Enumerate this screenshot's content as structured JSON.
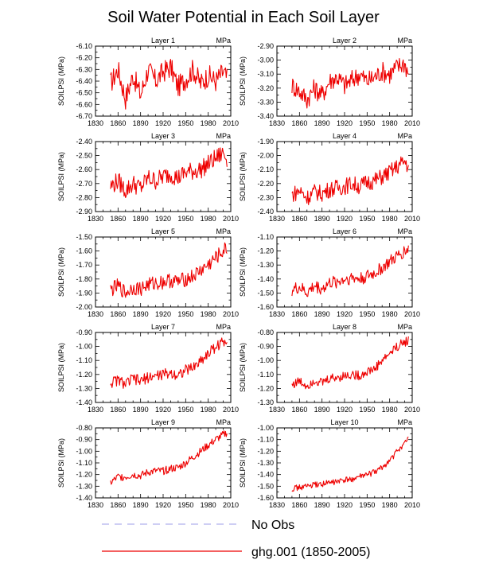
{
  "title": "Soil Water Potential in Each Soil Layer",
  "colors": {
    "model": "#ee0000",
    "obs": "#b0b0ee"
  },
  "legend": {
    "items": [
      {
        "label": "No Obs",
        "style": "dashed",
        "color": "#b0b0ee"
      },
      {
        "label": "ghg.001 (1850-2005)",
        "style": "solid",
        "color": "#ee0000"
      }
    ]
  },
  "chart_data": [
    {
      "type": "line",
      "title": "Layer 1",
      "units": "MPa",
      "ylabel": "SOILPSI  (MPa)",
      "xlabel": "",
      "xlim": [
        1830,
        2010
      ],
      "xticks": [
        1830,
        1860,
        1890,
        1920,
        1950,
        1980,
        2010
      ],
      "ylim": [
        -6.7,
        -6.1
      ],
      "yticks": [
        "-6.70",
        "-6.60",
        "-6.50",
        "-6.40",
        "-6.30",
        "-6.20",
        "-6.10"
      ],
      "x": [
        1850,
        1860,
        1870,
        1880,
        1890,
        1900,
        1910,
        1920,
        1930,
        1940,
        1950,
        1960,
        1970,
        1980,
        1990,
        2000,
        2005
      ],
      "series": [
        {
          "name": "ghg.001 (1850-2005)",
          "values": [
            -6.42,
            -6.3,
            -6.55,
            -6.35,
            -6.52,
            -6.3,
            -6.4,
            -6.32,
            -6.28,
            -6.45,
            -6.38,
            -6.3,
            -6.42,
            -6.35,
            -6.4,
            -6.32,
            -6.38
          ]
        }
      ]
    },
    {
      "type": "line",
      "title": "Layer 2",
      "units": "MPa",
      "ylabel": "SOILPSI  (MPa)",
      "xlabel": "",
      "xlim": [
        1830,
        2010
      ],
      "xticks": [
        1830,
        1860,
        1890,
        1920,
        1950,
        1980,
        2010
      ],
      "ylim": [
        -3.4,
        -2.9
      ],
      "yticks": [
        "-3.40",
        "-3.30",
        "-3.20",
        "-3.10",
        "-3.00",
        "-2.90"
      ],
      "x": [
        1850,
        1860,
        1870,
        1880,
        1890,
        1900,
        1910,
        1920,
        1930,
        1940,
        1950,
        1960,
        1970,
        1980,
        1990,
        2000,
        2005
      ],
      "series": [
        {
          "name": "ghg.001 (1850-2005)",
          "values": [
            -3.18,
            -3.22,
            -3.28,
            -3.2,
            -3.25,
            -3.15,
            -3.12,
            -3.18,
            -3.14,
            -3.1,
            -3.15,
            -3.12,
            -3.08,
            -3.1,
            -3.05,
            -3.02,
            -3.1
          ]
        }
      ]
    },
    {
      "type": "line",
      "title": "Layer 3",
      "units": "MPa",
      "ylabel": "SOILPSI  (MPa)",
      "xlabel": "",
      "xlim": [
        1830,
        2010
      ],
      "xticks": [
        1830,
        1860,
        1890,
        1920,
        1950,
        1980,
        2010
      ],
      "ylim": [
        -2.9,
        -2.4
      ],
      "yticks": [
        "-2.90",
        "-2.80",
        "-2.70",
        "-2.60",
        "-2.50",
        "-2.40"
      ],
      "x": [
        1850,
        1860,
        1870,
        1880,
        1890,
        1900,
        1910,
        1920,
        1930,
        1940,
        1950,
        1960,
        1970,
        1980,
        1990,
        2000,
        2005
      ],
      "series": [
        {
          "name": "ghg.001 (1850-2005)",
          "values": [
            -2.72,
            -2.68,
            -2.75,
            -2.7,
            -2.73,
            -2.66,
            -2.68,
            -2.65,
            -2.63,
            -2.66,
            -2.62,
            -2.61,
            -2.6,
            -2.56,
            -2.52,
            -2.48,
            -2.52
          ]
        }
      ]
    },
    {
      "type": "line",
      "title": "Layer 4",
      "units": "MPa",
      "ylabel": "SOILPSI  (MPa)",
      "xlabel": "",
      "xlim": [
        1830,
        2010
      ],
      "xticks": [
        1830,
        1860,
        1890,
        1920,
        1950,
        1980,
        2010
      ],
      "ylim": [
        -2.4,
        -1.9
      ],
      "yticks": [
        "-2.40",
        "-2.30",
        "-2.20",
        "-2.10",
        "-2.00",
        "-1.90"
      ],
      "x": [
        1850,
        1860,
        1870,
        1880,
        1890,
        1900,
        1910,
        1920,
        1930,
        1940,
        1950,
        1960,
        1970,
        1980,
        1990,
        2000,
        2005
      ],
      "series": [
        {
          "name": "ghg.001 (1850-2005)",
          "values": [
            -2.28,
            -2.25,
            -2.3,
            -2.26,
            -2.27,
            -2.24,
            -2.23,
            -2.22,
            -2.2,
            -2.22,
            -2.19,
            -2.18,
            -2.15,
            -2.12,
            -2.08,
            -2.04,
            -2.08
          ]
        }
      ]
    },
    {
      "type": "line",
      "title": "Layer 5",
      "units": "MPa",
      "ylabel": "SOILPSI  (MPa)",
      "xlabel": "",
      "xlim": [
        1830,
        2010
      ],
      "xticks": [
        1830,
        1860,
        1890,
        1920,
        1950,
        1980,
        2010
      ],
      "ylim": [
        -2.0,
        -1.5
      ],
      "yticks": [
        "-2.00",
        "-1.90",
        "-1.80",
        "-1.70",
        "-1.60",
        "-1.50"
      ],
      "x": [
        1850,
        1860,
        1870,
        1880,
        1890,
        1900,
        1910,
        1920,
        1930,
        1940,
        1950,
        1960,
        1970,
        1980,
        1990,
        2000,
        2005
      ],
      "series": [
        {
          "name": "ghg.001 (1850-2005)",
          "values": [
            -1.88,
            -1.85,
            -1.9,
            -1.86,
            -1.87,
            -1.84,
            -1.83,
            -1.82,
            -1.81,
            -1.82,
            -1.8,
            -1.78,
            -1.74,
            -1.7,
            -1.65,
            -1.6,
            -1.58
          ]
        }
      ]
    },
    {
      "type": "line",
      "title": "Layer 6",
      "units": "MPa",
      "ylabel": "SOILPSI  (MPa)",
      "xlabel": "",
      "xlim": [
        1830,
        2010
      ],
      "xticks": [
        1830,
        1860,
        1890,
        1920,
        1950,
        1980,
        2010
      ],
      "ylim": [
        -1.6,
        -1.1
      ],
      "yticks": [
        "-1.60",
        "-1.50",
        "-1.40",
        "-1.30",
        "-1.20",
        "-1.10"
      ],
      "x": [
        1850,
        1860,
        1870,
        1880,
        1890,
        1900,
        1910,
        1920,
        1930,
        1940,
        1950,
        1960,
        1970,
        1980,
        1990,
        2000,
        2005
      ],
      "series": [
        {
          "name": "ghg.001 (1850-2005)",
          "values": [
            -1.48,
            -1.46,
            -1.5,
            -1.45,
            -1.47,
            -1.43,
            -1.42,
            -1.4,
            -1.39,
            -1.4,
            -1.38,
            -1.36,
            -1.32,
            -1.28,
            -1.24,
            -1.2,
            -1.18
          ]
        }
      ]
    },
    {
      "type": "line",
      "title": "Layer 7",
      "units": "MPa",
      "ylabel": "SOILPSI  (MPa)",
      "xlabel": "",
      "xlim": [
        1830,
        2010
      ],
      "xticks": [
        1830,
        1860,
        1890,
        1920,
        1950,
        1980,
        2010
      ],
      "ylim": [
        -1.4,
        -0.9
      ],
      "yticks": [
        "-1.40",
        "-1.30",
        "-1.20",
        "-1.10",
        "-1.00",
        "-0.90"
      ],
      "x": [
        1850,
        1860,
        1870,
        1880,
        1890,
        1900,
        1910,
        1920,
        1930,
        1940,
        1950,
        1960,
        1970,
        1980,
        1990,
        2000,
        2005
      ],
      "series": [
        {
          "name": "ghg.001 (1850-2005)",
          "values": [
            -1.26,
            -1.24,
            -1.27,
            -1.23,
            -1.25,
            -1.22,
            -1.21,
            -1.2,
            -1.19,
            -1.2,
            -1.17,
            -1.15,
            -1.1,
            -1.05,
            -1.0,
            -0.97,
            -0.95
          ]
        }
      ]
    },
    {
      "type": "line",
      "title": "Layer 8",
      "units": "MPa",
      "ylabel": "SOILPSI  (MPa)",
      "xlabel": "",
      "xlim": [
        1830,
        2010
      ],
      "xticks": [
        1830,
        1860,
        1890,
        1920,
        1950,
        1980,
        2010
      ],
      "ylim": [
        -1.3,
        -0.8
      ],
      "yticks": [
        "-1.30",
        "-1.20",
        "-1.10",
        "-1.00",
        "-0.90",
        "-0.80"
      ],
      "x": [
        1850,
        1860,
        1870,
        1880,
        1890,
        1900,
        1910,
        1920,
        1930,
        1940,
        1950,
        1960,
        1970,
        1980,
        1990,
        2000,
        2005
      ],
      "series": [
        {
          "name": "ghg.001 (1850-2005)",
          "values": [
            -1.17,
            -1.15,
            -1.18,
            -1.14,
            -1.16,
            -1.13,
            -1.12,
            -1.11,
            -1.1,
            -1.11,
            -1.08,
            -1.06,
            -1.0,
            -0.95,
            -0.9,
            -0.87,
            -0.85
          ]
        }
      ]
    },
    {
      "type": "line",
      "title": "Layer 9",
      "units": "MPa",
      "ylabel": "SOILPSI  (MPa)",
      "xlabel": "",
      "xlim": [
        1830,
        2010
      ],
      "xticks": [
        1830,
        1860,
        1890,
        1920,
        1950,
        1980,
        2010
      ],
      "ylim": [
        -1.4,
        -0.8
      ],
      "yticks": [
        "-1.40",
        "-1.30",
        "-1.20",
        "-1.10",
        "-1.00",
        "-0.90",
        "-0.80"
      ],
      "x": [
        1850,
        1860,
        1870,
        1880,
        1890,
        1900,
        1910,
        1920,
        1930,
        1940,
        1950,
        1960,
        1970,
        1980,
        1990,
        2000,
        2005
      ],
      "series": [
        {
          "name": "ghg.001 (1850-2005)",
          "values": [
            -1.27,
            -1.22,
            -1.22,
            -1.2,
            -1.21,
            -1.18,
            -1.17,
            -1.17,
            -1.15,
            -1.14,
            -1.1,
            -1.05,
            -1.0,
            -0.95,
            -0.9,
            -0.86,
            -0.84
          ]
        }
      ]
    },
    {
      "type": "line",
      "title": "Layer 10",
      "units": "MPa",
      "ylabel": "SOILPSI  (MPa)",
      "xlabel": "",
      "xlim": [
        1830,
        2010
      ],
      "xticks": [
        1830,
        1860,
        1890,
        1920,
        1950,
        1980,
        2010
      ],
      "ylim": [
        -1.6,
        -1.0
      ],
      "yticks": [
        "-1.60",
        "-1.50",
        "-1.40",
        "-1.30",
        "-1.20",
        "-1.10",
        "-1.00"
      ],
      "x": [
        1850,
        1860,
        1870,
        1880,
        1890,
        1900,
        1910,
        1920,
        1930,
        1940,
        1950,
        1960,
        1970,
        1980,
        1990,
        2000,
        2005
      ],
      "series": [
        {
          "name": "ghg.001 (1850-2005)",
          "values": [
            -1.52,
            -1.51,
            -1.5,
            -1.49,
            -1.48,
            -1.47,
            -1.46,
            -1.45,
            -1.44,
            -1.42,
            -1.4,
            -1.38,
            -1.34,
            -1.28,
            -1.2,
            -1.13,
            -1.1
          ]
        }
      ]
    }
  ]
}
